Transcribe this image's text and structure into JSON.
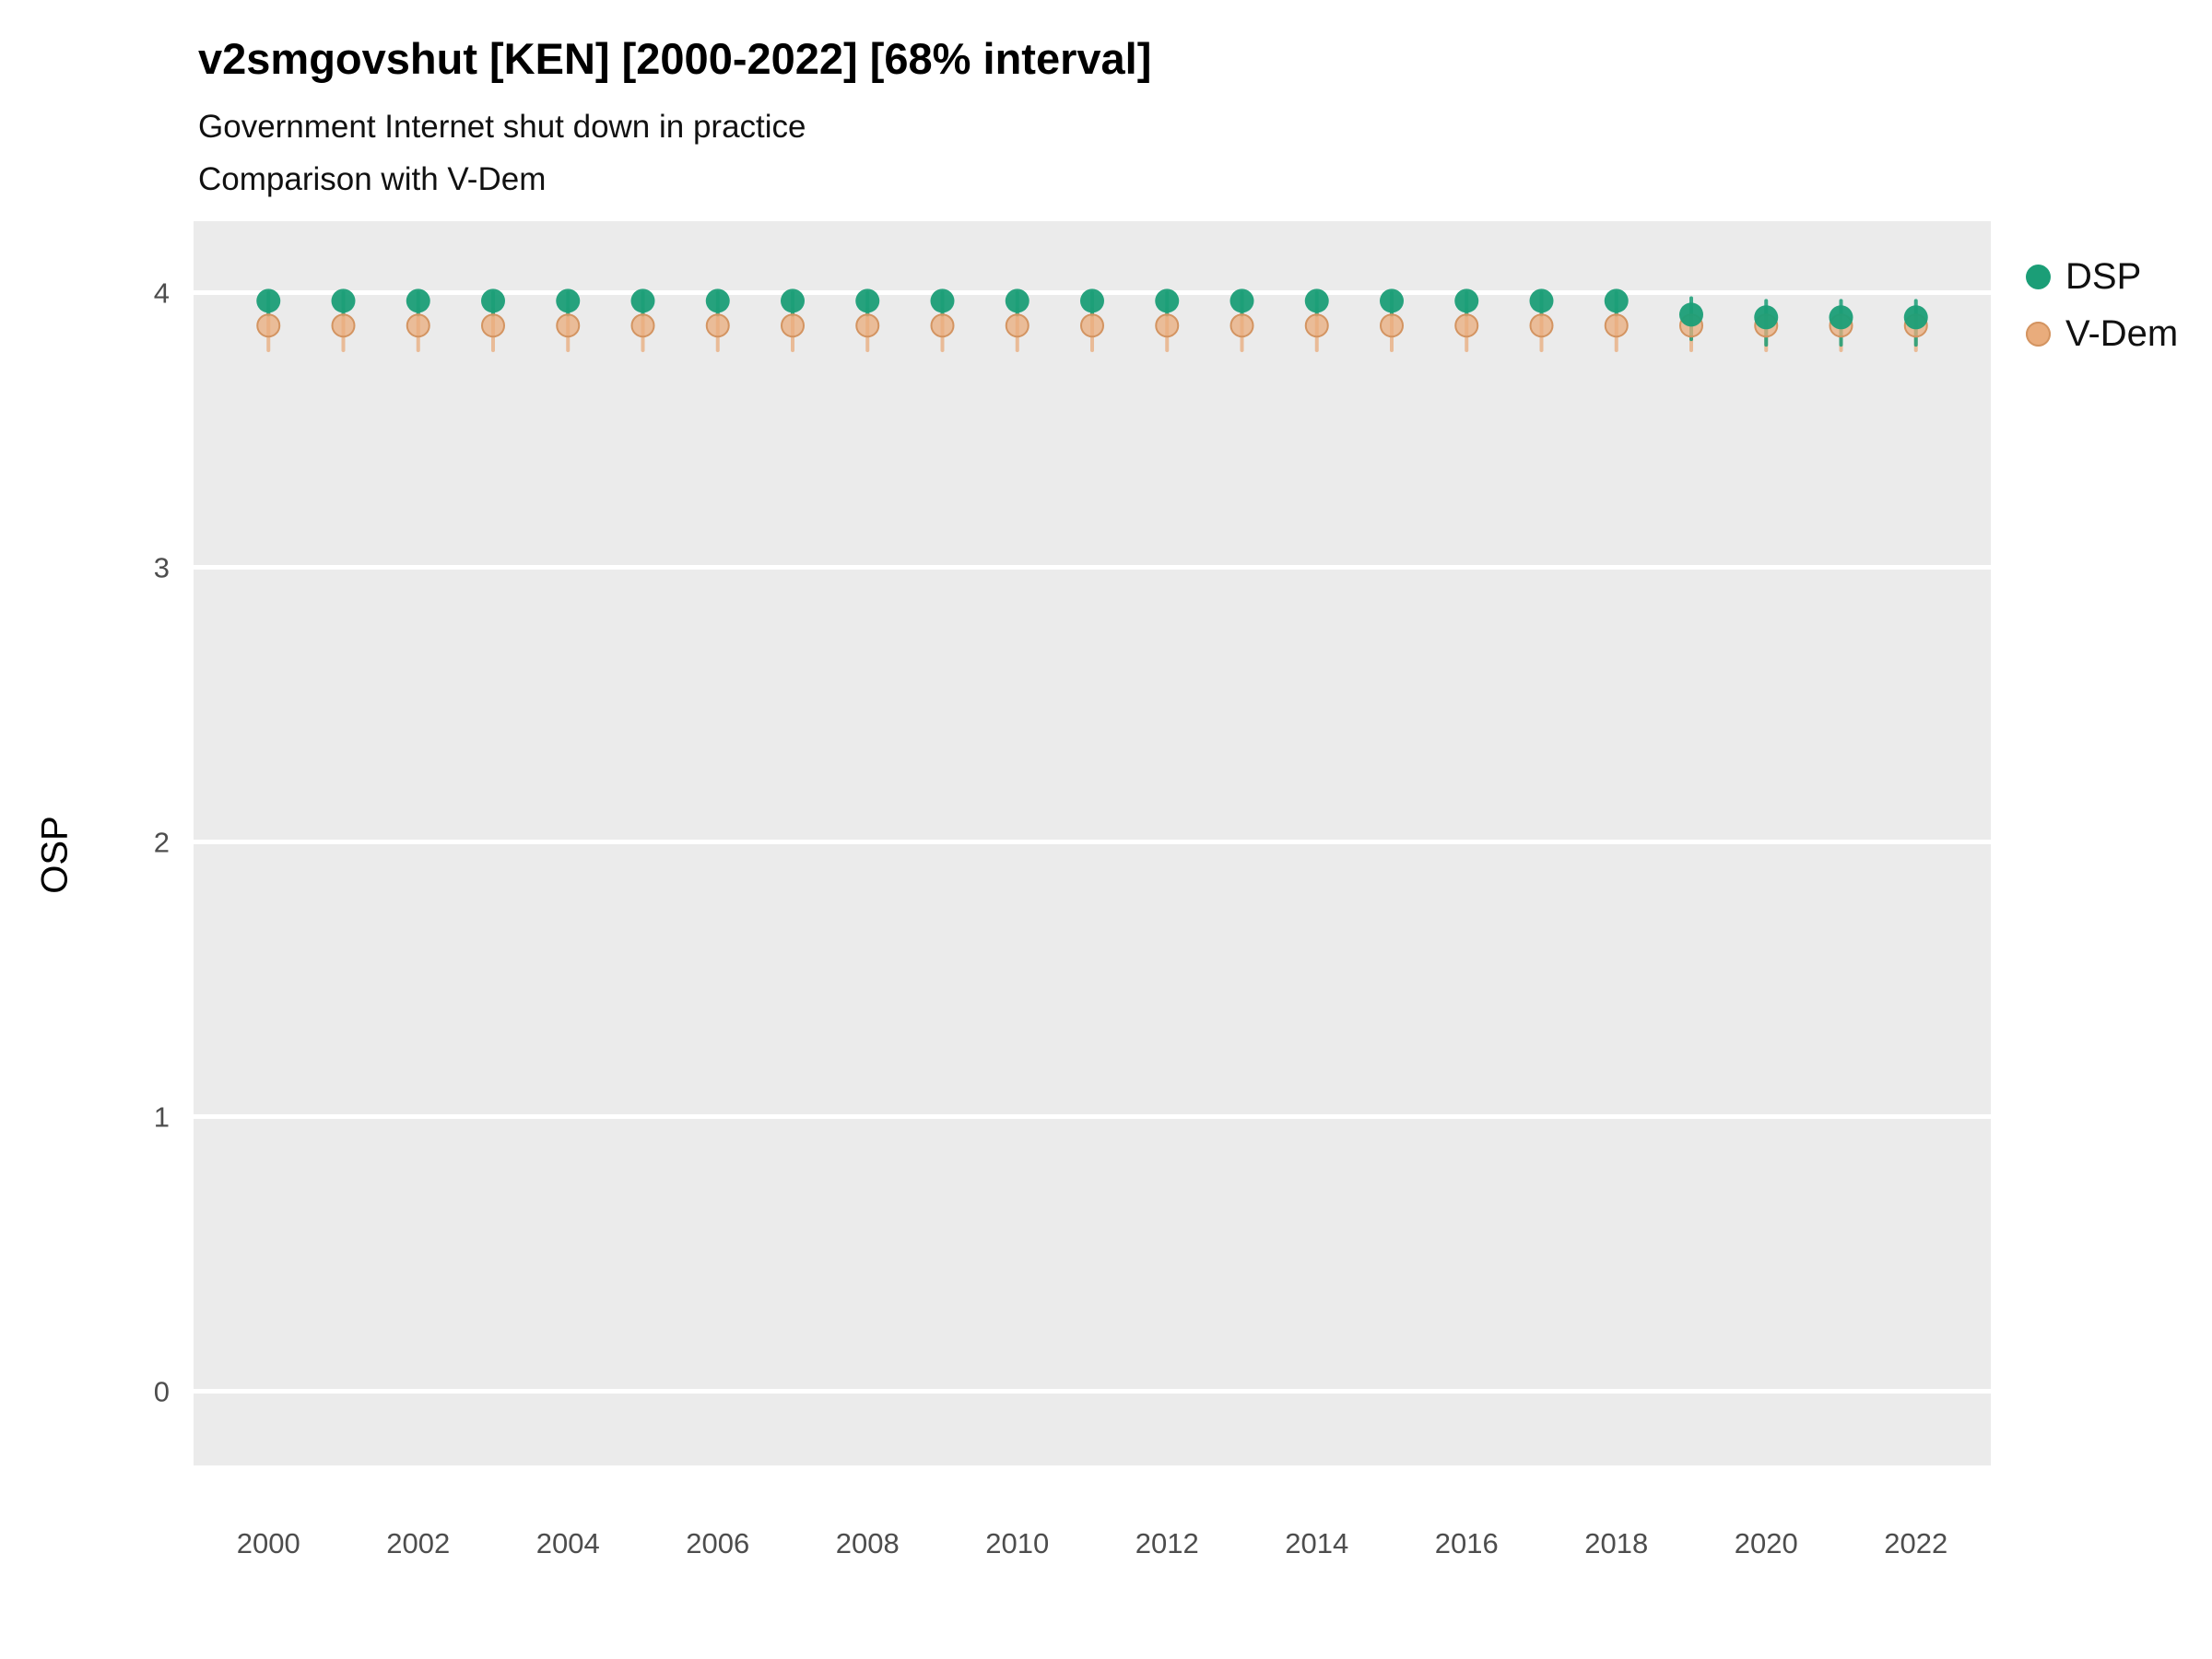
{
  "title": "v2smgovshut [KEN] [2000-2022] [68% interval]",
  "subtitle_line1": "Government Internet shut down in practice",
  "subtitle_line2": "Comparison with V-Dem",
  "ylabel": "OSP",
  "interval_label": "68% interval",
  "colors": {
    "panel_bg": "#EBEBEB",
    "grid": "#FFFFFF",
    "tick_label": "#4D4D4D",
    "dsp": "#1B9E77",
    "vdem": "#E9AC7C",
    "vdem_stroke": "#D39461"
  },
  "chart_data": {
    "type": "scatter",
    "title": "v2smgovshut [KEN] [2000-2022] [68% interval]",
    "subtitle": [
      "Government Internet shut down in practice",
      "Comparison with V-Dem"
    ],
    "xlabel": "",
    "ylabel": "OSP",
    "xlim": [
      1999,
      2023
    ],
    "ylim": [
      -0.27,
      4.26
    ],
    "yticks": [
      0,
      1,
      2,
      3,
      4
    ],
    "xticks": [
      2000,
      2002,
      2004,
      2006,
      2008,
      2010,
      2012,
      2014,
      2016,
      2018,
      2020,
      2022
    ],
    "x": [
      2000,
      2001,
      2002,
      2003,
      2004,
      2005,
      2006,
      2007,
      2008,
      2009,
      2010,
      2011,
      2012,
      2013,
      2014,
      2015,
      2016,
      2017,
      2018,
      2019,
      2020,
      2021,
      2022
    ],
    "legend_position": "right",
    "grid": true,
    "series": [
      {
        "name": "DSP",
        "color": "#1B9E77",
        "values": [
          3.97,
          3.97,
          3.97,
          3.97,
          3.97,
          3.97,
          3.97,
          3.97,
          3.97,
          3.97,
          3.97,
          3.97,
          3.97,
          3.97,
          3.97,
          3.97,
          3.97,
          3.97,
          3.97,
          3.92,
          3.91,
          3.91,
          3.91
        ],
        "lo": [
          3.92,
          3.92,
          3.92,
          3.92,
          3.92,
          3.92,
          3.92,
          3.92,
          3.92,
          3.92,
          3.92,
          3.92,
          3.92,
          3.92,
          3.92,
          3.92,
          3.92,
          3.92,
          3.92,
          3.83,
          3.81,
          3.81,
          3.81
        ],
        "hi": [
          4.0,
          4.0,
          4.0,
          4.0,
          4.0,
          4.0,
          4.0,
          4.0,
          4.0,
          4.0,
          4.0,
          4.0,
          4.0,
          4.0,
          4.0,
          4.0,
          4.0,
          4.0,
          4.0,
          3.98,
          3.97,
          3.97,
          3.97
        ]
      },
      {
        "name": "V-Dem",
        "color": "#E9AC7C",
        "values": [
          3.88,
          3.88,
          3.88,
          3.88,
          3.88,
          3.88,
          3.88,
          3.88,
          3.88,
          3.88,
          3.88,
          3.88,
          3.88,
          3.88,
          3.88,
          3.88,
          3.88,
          3.88,
          3.88,
          3.88,
          3.88,
          3.88,
          3.88
        ],
        "lo": [
          3.79,
          3.79,
          3.79,
          3.79,
          3.79,
          3.79,
          3.79,
          3.79,
          3.79,
          3.79,
          3.79,
          3.79,
          3.79,
          3.79,
          3.79,
          3.79,
          3.79,
          3.79,
          3.79,
          3.79,
          3.79,
          3.79,
          3.79
        ],
        "hi": [
          3.94,
          3.94,
          3.94,
          3.94,
          3.94,
          3.94,
          3.94,
          3.94,
          3.94,
          3.94,
          3.94,
          3.94,
          3.94,
          3.94,
          3.94,
          3.94,
          3.94,
          3.94,
          3.94,
          3.94,
          3.94,
          3.94,
          3.94
        ]
      }
    ]
  }
}
